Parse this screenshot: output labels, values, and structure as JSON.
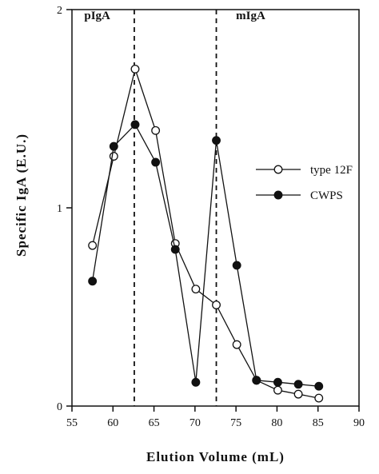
{
  "chart_data": {
    "type": "line",
    "title": "",
    "xlabel": "Elution Volume (mL)",
    "ylabel": "Specific IgA (E.U.)",
    "xlim": [
      55,
      90
    ],
    "ylim": [
      0,
      2
    ],
    "xticks": [
      "55",
      "60",
      "65",
      "70",
      "75",
      "80",
      "85",
      "90"
    ],
    "yticks": [
      "0",
      "1",
      "2"
    ],
    "legend_position": "right",
    "annotations": [
      {
        "text": "pIgA",
        "x": 56.5
      },
      {
        "text": "mIgA",
        "x": 75
      }
    ],
    "reference_lines_x": [
      62.6,
      72.6
    ],
    "series": [
      {
        "name": "type 12F",
        "marker": "open-circle",
        "x": [
          57.5,
          60.1,
          62.7,
          65.2,
          67.6,
          70.1,
          72.6,
          75.1,
          77.5,
          80.1,
          82.6,
          85.1
        ],
        "y": [
          0.81,
          1.26,
          1.7,
          1.39,
          0.82,
          0.59,
          0.51,
          0.31,
          0.13,
          0.08,
          0.06,
          0.04
        ]
      },
      {
        "name": "CWPS",
        "marker": "filled-circle",
        "x": [
          57.5,
          60.1,
          62.7,
          65.2,
          67.6,
          70.1,
          72.6,
          75.1,
          77.5,
          80.1,
          82.6,
          85.1
        ],
        "y": [
          0.63,
          1.31,
          1.42,
          1.23,
          0.79,
          0.12,
          1.34,
          0.71,
          0.13,
          0.12,
          0.11,
          0.1
        ]
      }
    ]
  }
}
